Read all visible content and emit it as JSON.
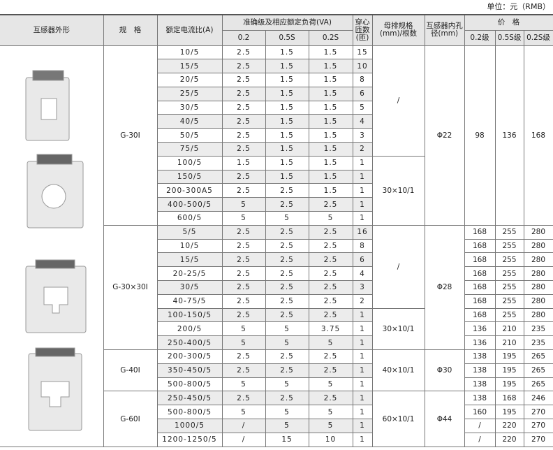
{
  "caption": "单位：元（RMB）",
  "headers": {
    "shape": "互感器外形",
    "spec": "规　格",
    "ratio": "额定电流比(A)",
    "load": "准确级及相应额定负荷(VA)",
    "load_cols": [
      "0.2",
      "0.5S",
      "0.2S"
    ],
    "turns": "穿心匝数(匝)",
    "busbar": "母排规格(mm)/根数",
    "bore": "互感器内孔径(mm)",
    "price": "价　格",
    "price_cols": [
      "0.2级",
      "0.5S级",
      "0.2S级"
    ]
  },
  "groups": [
    {
      "spec": "G-30I",
      "bore": "Φ22",
      "prices": [
        "98",
        "136",
        "168"
      ],
      "blocks": [
        {
          "busbar": "/",
          "rows": [
            [
              "10/5",
              "2.5",
              "1.5",
              "1.5",
              "15"
            ],
            [
              "15/5",
              "2.5",
              "1.5",
              "1.5",
              "10"
            ],
            [
              "20/5",
              "2.5",
              "1.5",
              "1.5",
              "8"
            ],
            [
              "25/5",
              "2.5",
              "1.5",
              "1.5",
              "6"
            ],
            [
              "30/5",
              "2.5",
              "1.5",
              "1.5",
              "5"
            ],
            [
              "40/5",
              "2.5",
              "1.5",
              "1.5",
              "4"
            ],
            [
              "50/5",
              "2.5",
              "1.5",
              "1.5",
              "3"
            ],
            [
              "75/5",
              "2.5",
              "1.5",
              "1.5",
              "2"
            ]
          ]
        },
        {
          "busbar": "30×10/1",
          "rows": [
            [
              "100/5",
              "1.5",
              "1.5",
              "1.5",
              "1"
            ],
            [
              "150/5",
              "2.5",
              "1.5",
              "1.5",
              "1"
            ],
            [
              "200-300A5",
              "2.5",
              "2.5",
              "1.5",
              "1"
            ],
            [
              "400-500/5",
              "5",
              "2.5",
              "2.5",
              "1"
            ],
            [
              "600/5",
              "5",
              "5",
              "5",
              "1"
            ]
          ]
        }
      ]
    },
    {
      "spec": "G-30×30I",
      "bore": "Φ28",
      "blocks": [
        {
          "busbar": "/",
          "rows": [
            [
              "5/5",
              "2.5",
              "2.5",
              "2.5",
              "16",
              "168",
              "255",
              "280"
            ],
            [
              "10/5",
              "2.5",
              "2.5",
              "2.5",
              "8",
              "168",
              "255",
              "280"
            ],
            [
              "15/5",
              "2.5",
              "2.5",
              "2.5",
              "6",
              "168",
              "255",
              "280"
            ],
            [
              "20-25/5",
              "2.5",
              "2.5",
              "2.5",
              "4",
              "168",
              "255",
              "280"
            ],
            [
              "30/5",
              "2.5",
              "2.5",
              "2.5",
              "3",
              "168",
              "255",
              "280"
            ],
            [
              "40-75/5",
              "2.5",
              "2.5",
              "2.5",
              "2",
              "168",
              "255",
              "280"
            ]
          ]
        },
        {
          "busbar": "30×10/1",
          "rows": [
            [
              "100-150/5",
              "2.5",
              "2.5",
              "2.5",
              "1",
              "168",
              "255",
              "280"
            ],
            [
              "200/5",
              "5",
              "5",
              "3.75",
              "1",
              "136",
              "210",
              "235"
            ],
            [
              "250-400/5",
              "5",
              "5",
              "5",
              "1",
              "136",
              "210",
              "235"
            ]
          ]
        }
      ]
    },
    {
      "spec": "G-40I",
      "bore": "Φ30",
      "blocks": [
        {
          "busbar": "40×10/1",
          "rows": [
            [
              "200-300/5",
              "2.5",
              "2.5",
              "2.5",
              "1",
              "138",
              "195",
              "265"
            ],
            [
              "350-450/5",
              "2.5",
              "2.5",
              "2.5",
              "1",
              "138",
              "195",
              "265"
            ],
            [
              "500-800/5",
              "5",
              "5",
              "5",
              "1",
              "138",
              "195",
              "265"
            ]
          ]
        }
      ]
    },
    {
      "spec": "G-60I",
      "bore": "Φ44",
      "blocks": [
        {
          "busbar": "60×10/1",
          "rows": [
            [
              "250-450/5",
              "2.5",
              "2.5",
              "2.5",
              "1",
              "138",
              "168",
              "246"
            ],
            [
              "500-800/5",
              "5",
              "5",
              "5",
              "1",
              "160",
              "195",
              "270"
            ],
            [
              "1000/5",
              "/",
              "5",
              "5",
              "1",
              "/",
              "220",
              "270"
            ],
            [
              "1200-1250/5",
              "/",
              "15",
              "10",
              "1",
              "/",
              "220",
              "270"
            ]
          ]
        }
      ]
    }
  ]
}
